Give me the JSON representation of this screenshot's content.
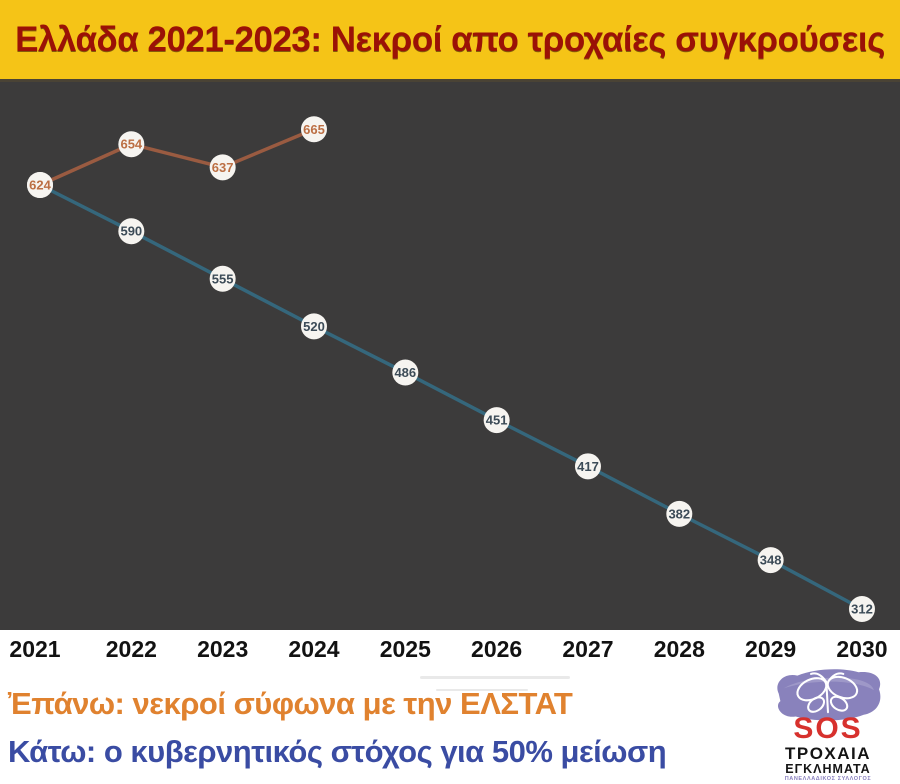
{
  "header": {
    "title": "Ελλάδα 2021-2023: Νεκροί απο τροχαίες συγκρούσεις",
    "title_color": "#9b1106",
    "background": "#f5c417"
  },
  "chart_data": {
    "type": "line",
    "x": [
      2021,
      2022,
      2023,
      2024,
      2025,
      2026,
      2027,
      2028,
      2029,
      2030
    ],
    "x_labels": [
      "2021",
      "2022",
      "2023",
      "2024",
      "2025",
      "2026",
      "2027",
      "2028",
      "2029",
      "2030"
    ],
    "series": [
      {
        "name": "Κυβερνητικός στόχος για 50% μείωση",
        "x": [
          2021,
          2022,
          2023,
          2024,
          2025,
          2026,
          2027,
          2028,
          2029,
          2030
        ],
        "values": [
          624,
          590,
          555,
          520,
          486,
          451,
          417,
          382,
          348,
          312
        ],
        "line_color": "#35677c",
        "label_color": "#3c4b57"
      },
      {
        "name": "Νεκροί σύμφωνα με την ΕΛΣΤΑΤ",
        "x": [
          2021,
          2022,
          2023,
          2024
        ],
        "values": [
          624,
          654,
          637,
          665
        ],
        "line_color": "#9a5b41",
        "label_color": "#bc6f44"
      }
    ],
    "title": "Ελλάδα 2021-2023: Νεκροί απο τροχαίες συγκρούσεις",
    "xlabel": "",
    "ylabel": "",
    "ylim": [
      280,
      700
    ],
    "grid": false,
    "legend_position": "none",
    "plot_background": "#3c3b3b",
    "point_fill": "#f6f4f0"
  },
  "footer": {
    "caption_top": "Ἐπάνω: νεκροί σύφωνα με την ΕΛΣΤΑΤ",
    "caption_top_color": "#e0822f",
    "caption_bottom": "Κάτω: ο κυβερνητικός στόχος για 50% μείωση",
    "caption_bottom_color": "#3a4ca3"
  },
  "logo": {
    "sos": "SOS",
    "sos_color": "#d7312d",
    "line1": "ΤΡΟΧΑΙΑ",
    "line2": "ΕΓΚΛΗΜΑΤΑ",
    "line3": "ΠΑΝΕΛΛΑΔΙΚΟΣ ΣΥΛΛΟΓΟΣ",
    "butterfly_color": "#837bb8"
  }
}
